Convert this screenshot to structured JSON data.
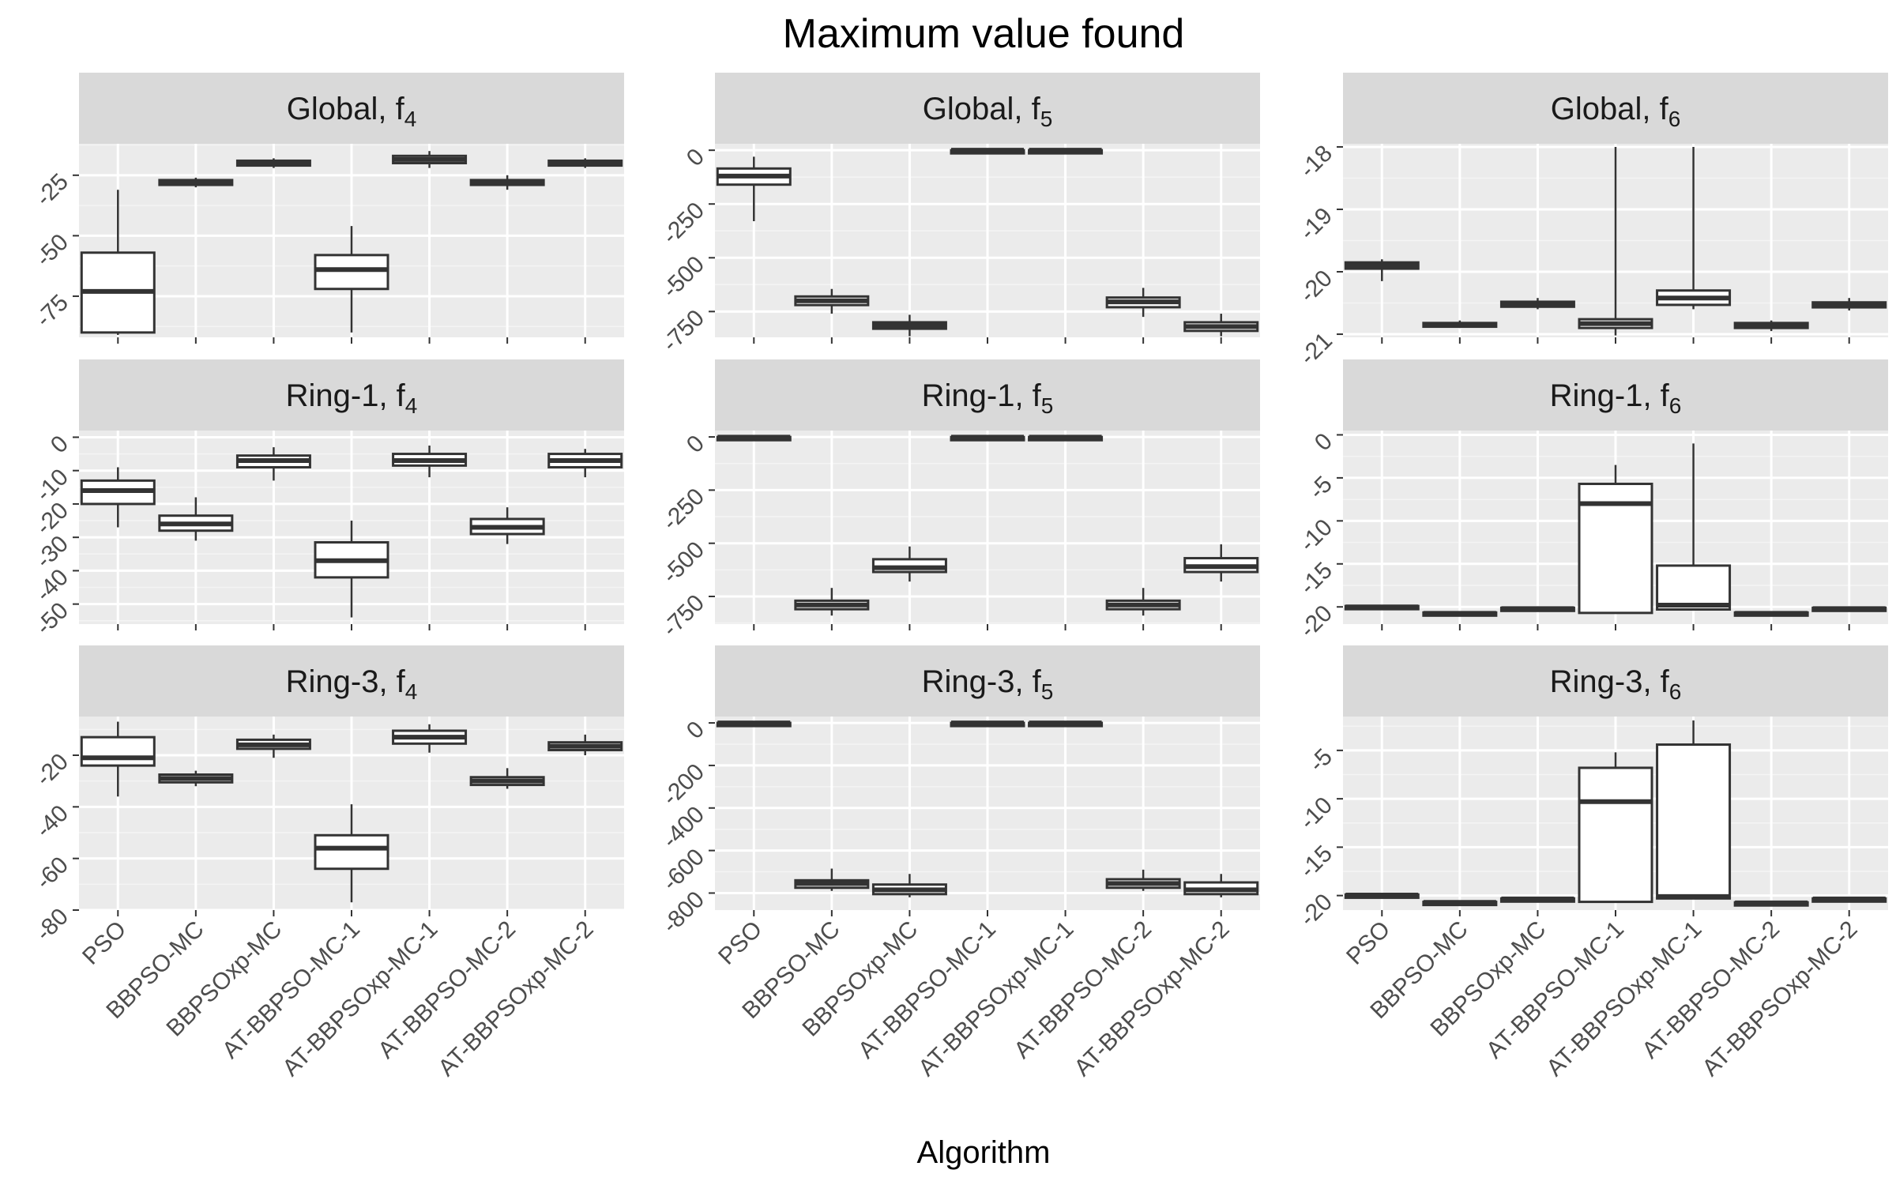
{
  "title": "Maximum value found",
  "chart_data": {
    "type": "boxplot",
    "title": "Maximum value found",
    "xlabel": "Algorithm",
    "ylabel": "",
    "grid": true,
    "categories": [
      "PSO",
      "BBPSO-MC",
      "BBPSOxp-MC",
      "AT-BBPSO-MC-1",
      "AT-BBPSOxp-MC-1",
      "AT-BBPSO-MC-2",
      "AT-BBPSOxp-MC-2"
    ],
    "panels": [
      {
        "strip": "Global, f",
        "sub": "4",
        "ylim": [
          -92,
          -12
        ],
        "yticks": [
          -75,
          -50,
          -25
        ],
        "tick_labels": [
          "-75",
          "-50",
          "-25"
        ],
        "boxes": [
          {
            "min": -91,
            "q1": -90,
            "median": -73,
            "q3": -57,
            "max": -31
          },
          {
            "min": -30,
            "q1": -29,
            "median": -28,
            "q3": -27,
            "max": -26
          },
          {
            "min": -22,
            "q1": -21,
            "median": -20,
            "q3": -19,
            "max": -18
          },
          {
            "min": -90,
            "q1": -72,
            "median": -64,
            "q3": -58,
            "max": -46
          },
          {
            "min": -22,
            "q1": -20,
            "median": -18.5,
            "q3": -17,
            "max": -15
          },
          {
            "min": -31,
            "q1": -29,
            "median": -28,
            "q3": -27,
            "max": -25
          },
          {
            "min": -22,
            "q1": -21,
            "median": -20,
            "q3": -19,
            "max": -18
          }
        ]
      },
      {
        "strip": "Global, f",
        "sub": "5",
        "ylim": [
          -870,
          30
        ],
        "yticks": [
          -750,
          -500,
          -250,
          0
        ],
        "tick_labels": [
          "-750",
          "-500",
          "-250",
          "0"
        ],
        "boxes": [
          {
            "min": -330,
            "q1": -160,
            "median": -120,
            "q3": -85,
            "max": -30
          },
          {
            "min": -760,
            "q1": -720,
            "median": -700,
            "q3": -680,
            "max": -645
          },
          {
            "min": -865,
            "q1": -830,
            "median": -815,
            "q3": -800,
            "max": -765
          },
          {
            "min": -1,
            "q1": -1,
            "median": 0,
            "q3": 0,
            "max": 0
          },
          {
            "min": -1,
            "q1": -1,
            "median": 0,
            "q3": 0,
            "max": 0
          },
          {
            "min": -775,
            "q1": -730,
            "median": -705,
            "q3": -685,
            "max": -640
          },
          {
            "min": -865,
            "q1": -840,
            "median": -820,
            "q3": -800,
            "max": -760
          }
        ]
      },
      {
        "strip": "Global, f",
        "sub": "6",
        "ylim": [
          -21.05,
          -17.95
        ],
        "yticks": [
          -21,
          -20,
          -19,
          -18
        ],
        "tick_labels": [
          "-21",
          "-20",
          "-19",
          "-18"
        ],
        "boxes": [
          {
            "min": -20.15,
            "q1": -19.95,
            "median": -19.9,
            "q3": -19.85,
            "max": -19.8
          },
          {
            "min": -20.9,
            "q1": -20.88,
            "median": -20.85,
            "q3": -20.82,
            "max": -20.78
          },
          {
            "min": -20.6,
            "q1": -20.56,
            "median": -20.52,
            "q3": -20.48,
            "max": -20.42
          },
          {
            "min": -21.02,
            "q1": -20.9,
            "median": -20.83,
            "q3": -20.76,
            "max": -18.0
          },
          {
            "min": -20.6,
            "q1": -20.53,
            "median": -20.42,
            "q3": -20.3,
            "max": -18.0
          },
          {
            "min": -20.95,
            "q1": -20.9,
            "median": -20.86,
            "q3": -20.82,
            "max": -20.78
          },
          {
            "min": -20.62,
            "q1": -20.57,
            "median": -20.53,
            "q3": -20.49,
            "max": -20.42
          }
        ]
      },
      {
        "strip": "Ring-1, f",
        "sub": "4",
        "ylim": [
          -56,
          2
        ],
        "yticks": [
          -50,
          -40,
          -30,
          -20,
          -10,
          0
        ],
        "tick_labels": [
          "-50",
          "-40",
          "-30",
          "-20",
          "-10",
          "0"
        ],
        "boxes": [
          {
            "min": -27,
            "q1": -20,
            "median": -16,
            "q3": -13,
            "max": -9
          },
          {
            "min": -31,
            "q1": -28,
            "median": -26,
            "q3": -23.5,
            "max": -18
          },
          {
            "min": -13,
            "q1": -9,
            "median": -7,
            "q3": -5.5,
            "max": -3
          },
          {
            "min": -54,
            "q1": -42,
            "median": -37,
            "q3": -31.5,
            "max": -25
          },
          {
            "min": -12,
            "q1": -8.5,
            "median": -7,
            "q3": -5,
            "max": -2.5
          },
          {
            "min": -32,
            "q1": -29,
            "median": -27,
            "q3": -24.5,
            "max": -21
          },
          {
            "min": -12,
            "q1": -9,
            "median": -7,
            "q3": -5,
            "max": -3.5
          }
        ]
      },
      {
        "strip": "Ring-1, f",
        "sub": "5",
        "ylim": [
          -880,
          30
        ],
        "yticks": [
          -750,
          -500,
          -250,
          0
        ],
        "tick_labels": [
          "-750",
          "-500",
          "-250",
          "0"
        ],
        "boxes": [
          {
            "min": -3,
            "q1": -2,
            "median": -1,
            "q3": -0.5,
            "max": 0
          },
          {
            "min": -840,
            "q1": -810,
            "median": -790,
            "q3": -770,
            "max": -710
          },
          {
            "min": -680,
            "q1": -635,
            "median": -615,
            "q3": -575,
            "max": -515
          },
          {
            "min": -3,
            "q1": -2,
            "median": -1,
            "q3": -0.5,
            "max": 0
          },
          {
            "min": -3,
            "q1": -2,
            "median": -1,
            "q3": -0.5,
            "max": 0
          },
          {
            "min": -840,
            "q1": -810,
            "median": -790,
            "q3": -770,
            "max": -710
          },
          {
            "min": -680,
            "q1": -635,
            "median": -610,
            "q3": -570,
            "max": -505
          }
        ]
      },
      {
        "strip": "Ring-1, f",
        "sub": "6",
        "ylim": [
          -22,
          0.5
        ],
        "yticks": [
          -20,
          -15,
          -10,
          -5,
          0
        ],
        "tick_labels": [
          "-20",
          "-15",
          "-10",
          "-5",
          "0"
        ],
        "boxes": [
          {
            "min": -20.2,
            "q1": -20.1,
            "median": -20.0,
            "q3": -19.9,
            "max": -19.8
          },
          {
            "min": -20.95,
            "q1": -20.85,
            "median": -20.75,
            "q3": -20.65,
            "max": -20.6
          },
          {
            "min": -20.4,
            "q1": -20.3,
            "median": -20.2,
            "q3": -20.1,
            "max": -20.0
          },
          {
            "min": -20.7,
            "q1": -20.7,
            "median": -8,
            "q3": -5.7,
            "max": -3.5
          },
          {
            "min": -20.3,
            "q1": -20.3,
            "median": -19.8,
            "q3": -15.2,
            "max": -1
          },
          {
            "min": -20.95,
            "q1": -20.85,
            "median": -20.75,
            "q3": -20.65,
            "max": -20.6
          },
          {
            "min": -20.4,
            "q1": -20.3,
            "median": -20.2,
            "q3": -20.1,
            "max": -20.0
          }
        ]
      },
      {
        "strip": "Ring-3, f",
        "sub": "4",
        "ylim": [
          -80,
          -5
        ],
        "yticks": [
          -80,
          -60,
          -40,
          -20
        ],
        "tick_labels": [
          "-80",
          "-60",
          "-40",
          "-20"
        ],
        "boxes": [
          {
            "min": -36,
            "q1": -24,
            "median": -21,
            "q3": -13,
            "max": -7
          },
          {
            "min": -32,
            "q1": -30.5,
            "median": -29,
            "q3": -27.5,
            "max": -26
          },
          {
            "min": -21,
            "q1": -17.5,
            "median": -16,
            "q3": -14,
            "max": -12
          },
          {
            "min": -77,
            "q1": -64,
            "median": -56,
            "q3": -51,
            "max": -39
          },
          {
            "min": -19,
            "q1": -15.5,
            "median": -13,
            "q3": -10.5,
            "max": -8
          },
          {
            "min": -33,
            "q1": -31.5,
            "median": -30,
            "q3": -28.5,
            "max": -25
          },
          {
            "min": -20,
            "q1": -18,
            "median": -16.5,
            "q3": -15,
            "max": -12
          }
        ]
      },
      {
        "strip": "Ring-3, f",
        "sub": "5",
        "ylim": [
          -880,
          30
        ],
        "yticks": [
          -800,
          -600,
          -400,
          -200,
          0
        ],
        "tick_labels": [
          "-800",
          "-600",
          "-400",
          "-200",
          "0"
        ],
        "boxes": [
          {
            "min": -2,
            "q1": -1,
            "median": 0,
            "q3": 0,
            "max": 0
          },
          {
            "min": -790,
            "q1": -775,
            "median": -755,
            "q3": -740,
            "max": -685
          },
          {
            "min": -820,
            "q1": -805,
            "median": -785,
            "q3": -760,
            "max": -710
          },
          {
            "min": -2,
            "q1": -1,
            "median": 0,
            "q3": 0,
            "max": 0
          },
          {
            "min": -2,
            "q1": -1,
            "median": 0,
            "q3": 0,
            "max": 0
          },
          {
            "min": -790,
            "q1": -775,
            "median": -755,
            "q3": -735,
            "max": -690
          },
          {
            "min": -820,
            "q1": -805,
            "median": -785,
            "q3": -750,
            "max": -710
          }
        ]
      },
      {
        "strip": "Ring-3, f",
        "sub": "6",
        "ylim": [
          -21.5,
          -1.5
        ],
        "yticks": [
          -20,
          -15,
          -10,
          -5
        ],
        "tick_labels": [
          "-20",
          "-15",
          "-10",
          "-5"
        ],
        "boxes": [
          {
            "min": -20.1,
            "q1": -20.0,
            "median": -19.95,
            "q3": -19.9,
            "max": -19.8
          },
          {
            "min": -20.8,
            "q1": -20.75,
            "median": -20.7,
            "q3": -20.65,
            "max": -20.6
          },
          {
            "min": -20.45,
            "q1": -20.4,
            "median": -20.35,
            "q3": -20.3,
            "max": -20.25
          },
          {
            "min": -20.65,
            "q1": -20.65,
            "median": -10.3,
            "q3": -6.8,
            "max": -5.2
          },
          {
            "min": -20.3,
            "q1": -20.3,
            "median": -20.1,
            "q3": -4.4,
            "max": -1.9
          },
          {
            "min": -20.85,
            "q1": -20.8,
            "median": -20.75,
            "q3": -20.7,
            "max": -20.65
          },
          {
            "min": -20.45,
            "q1": -20.4,
            "median": -20.35,
            "q3": -20.3,
            "max": -20.25
          }
        ]
      }
    ]
  }
}
